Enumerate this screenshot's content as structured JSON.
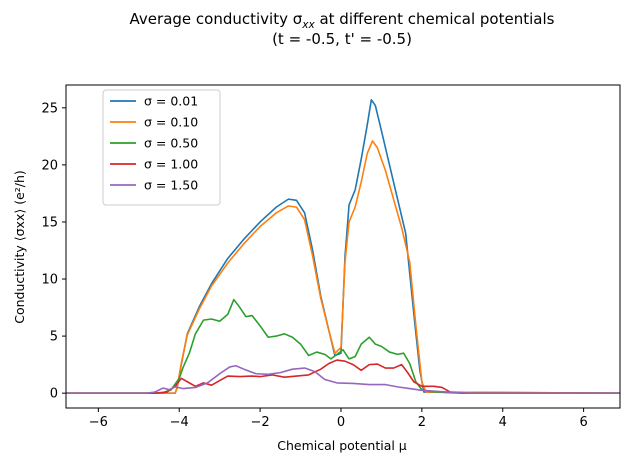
{
  "chart_data": {
    "type": "line",
    "title_line1": "Average conductivity σ",
    "title_sub": "xx",
    "title_line1_tail": " at different chemical potentials",
    "title_line2": "(t = -0.5, t' = -0.5)",
    "xlabel": "Chemical potential μ",
    "ylabel": "Conductivity ⟨σxx⟩ (e²/h)",
    "xlim": [
      -6.8,
      6.9
    ],
    "ylim": [
      -1.3,
      27
    ],
    "xticks": [
      -6,
      -4,
      -2,
      0,
      2,
      4,
      6
    ],
    "xtick_labels": [
      "−6",
      "−4",
      "−2",
      "0",
      "2",
      "4",
      "6"
    ],
    "yticks": [
      0,
      5,
      10,
      15,
      20,
      25
    ],
    "ytick_labels": [
      "0",
      "5",
      "10",
      "15",
      "20",
      "25"
    ],
    "grid": false,
    "legend_position": "upper-left",
    "series": [
      {
        "name": "σ = 0.01",
        "color": "#1f77b4",
        "points": [
          [
            -6.8,
            0
          ],
          [
            -4.1,
            0
          ],
          [
            -4.05,
            0.5
          ],
          [
            -3.95,
            2.5
          ],
          [
            -3.8,
            5.2
          ],
          [
            -3.5,
            7.6
          ],
          [
            -3.2,
            9.6
          ],
          [
            -2.8,
            11.8
          ],
          [
            -2.4,
            13.5
          ],
          [
            -2.0,
            15.0
          ],
          [
            -1.6,
            16.3
          ],
          [
            -1.3,
            17.0
          ],
          [
            -1.1,
            16.9
          ],
          [
            -0.9,
            15.8
          ],
          [
            -0.7,
            12.5
          ],
          [
            -0.5,
            8.5
          ],
          [
            -0.3,
            5.5
          ],
          [
            -0.15,
            3.3
          ],
          [
            0.0,
            3.5
          ],
          [
            0.1,
            12.0
          ],
          [
            0.2,
            16.5
          ],
          [
            0.35,
            17.8
          ],
          [
            0.5,
            20.5
          ],
          [
            0.65,
            23.5
          ],
          [
            0.75,
            25.7
          ],
          [
            0.85,
            25.2
          ],
          [
            1.0,
            23.0
          ],
          [
            1.2,
            20.0
          ],
          [
            1.4,
            17.0
          ],
          [
            1.6,
            14.0
          ],
          [
            1.8,
            7.0
          ],
          [
            1.95,
            2.0
          ],
          [
            2.05,
            0.1
          ],
          [
            6.9,
            0
          ]
        ]
      },
      {
        "name": "σ = 0.10",
        "color": "#ff7f0e",
        "points": [
          [
            -6.8,
            0
          ],
          [
            -4.1,
            0
          ],
          [
            -4.05,
            0.5
          ],
          [
            -3.95,
            2.6
          ],
          [
            -3.8,
            5.1
          ],
          [
            -3.5,
            7.4
          ],
          [
            -3.2,
            9.4
          ],
          [
            -2.8,
            11.4
          ],
          [
            -2.4,
            13.1
          ],
          [
            -2.0,
            14.6
          ],
          [
            -1.6,
            15.8
          ],
          [
            -1.3,
            16.4
          ],
          [
            -1.1,
            16.3
          ],
          [
            -0.9,
            15.2
          ],
          [
            -0.7,
            12.0
          ],
          [
            -0.5,
            8.3
          ],
          [
            -0.3,
            5.5
          ],
          [
            -0.15,
            3.5
          ],
          [
            0.0,
            4.0
          ],
          [
            0.1,
            11.5
          ],
          [
            0.2,
            15.0
          ],
          [
            0.35,
            16.3
          ],
          [
            0.5,
            18.5
          ],
          [
            0.65,
            21.0
          ],
          [
            0.78,
            22.1
          ],
          [
            0.9,
            21.5
          ],
          [
            1.1,
            19.5
          ],
          [
            1.3,
            17.0
          ],
          [
            1.5,
            14.5
          ],
          [
            1.7,
            11.5
          ],
          [
            1.85,
            6.0
          ],
          [
            2.0,
            1.0
          ],
          [
            2.1,
            0.1
          ],
          [
            6.9,
            0
          ]
        ]
      },
      {
        "name": "σ = 0.50",
        "color": "#2ca02c",
        "points": [
          [
            -6.8,
            0
          ],
          [
            -4.6,
            0
          ],
          [
            -4.4,
            0.05
          ],
          [
            -4.2,
            0.3
          ],
          [
            -4.0,
            1.3
          ],
          [
            -3.9,
            2.3
          ],
          [
            -3.75,
            3.5
          ],
          [
            -3.6,
            5.2
          ],
          [
            -3.4,
            6.4
          ],
          [
            -3.2,
            6.5
          ],
          [
            -3.0,
            6.3
          ],
          [
            -2.8,
            6.9
          ],
          [
            -2.65,
            8.2
          ],
          [
            -2.5,
            7.5
          ],
          [
            -2.35,
            6.7
          ],
          [
            -2.2,
            6.8
          ],
          [
            -2.0,
            5.9
          ],
          [
            -1.8,
            4.9
          ],
          [
            -1.6,
            5.0
          ],
          [
            -1.4,
            5.2
          ],
          [
            -1.2,
            4.9
          ],
          [
            -1.0,
            4.3
          ],
          [
            -0.8,
            3.3
          ],
          [
            -0.6,
            3.6
          ],
          [
            -0.4,
            3.4
          ],
          [
            -0.25,
            3.0
          ],
          [
            -0.1,
            3.4
          ],
          [
            0.05,
            3.8
          ],
          [
            0.2,
            3.0
          ],
          [
            0.35,
            3.2
          ],
          [
            0.5,
            4.3
          ],
          [
            0.7,
            4.9
          ],
          [
            0.85,
            4.3
          ],
          [
            1.0,
            4.1
          ],
          [
            1.2,
            3.6
          ],
          [
            1.4,
            3.4
          ],
          [
            1.55,
            3.5
          ],
          [
            1.7,
            2.6
          ],
          [
            1.85,
            1.0
          ],
          [
            2.0,
            0.3
          ],
          [
            2.2,
            0.15
          ],
          [
            2.6,
            0.05
          ],
          [
            3.0,
            0
          ],
          [
            6.9,
            0
          ]
        ]
      },
      {
        "name": "σ = 1.00",
        "color": "#d62728",
        "points": [
          [
            -6.8,
            0
          ],
          [
            -4.6,
            0
          ],
          [
            -4.3,
            0.1
          ],
          [
            -4.1,
            0.6
          ],
          [
            -3.95,
            1.3
          ],
          [
            -3.8,
            1.0
          ],
          [
            -3.6,
            0.6
          ],
          [
            -3.4,
            0.9
          ],
          [
            -3.2,
            0.7
          ],
          [
            -3.0,
            1.1
          ],
          [
            -2.8,
            1.5
          ],
          [
            -2.5,
            1.45
          ],
          [
            -2.2,
            1.5
          ],
          [
            -2.0,
            1.45
          ],
          [
            -1.7,
            1.6
          ],
          [
            -1.4,
            1.4
          ],
          [
            -1.1,
            1.5
          ],
          [
            -0.8,
            1.6
          ],
          [
            -0.5,
            2.1
          ],
          [
            -0.3,
            2.6
          ],
          [
            -0.1,
            2.9
          ],
          [
            0.1,
            2.8
          ],
          [
            0.3,
            2.5
          ],
          [
            0.5,
            2.0
          ],
          [
            0.7,
            2.5
          ],
          [
            0.9,
            2.55
          ],
          [
            1.1,
            2.2
          ],
          [
            1.3,
            2.2
          ],
          [
            1.5,
            2.5
          ],
          [
            1.65,
            1.8
          ],
          [
            1.8,
            1.0
          ],
          [
            2.0,
            0.6
          ],
          [
            2.3,
            0.6
          ],
          [
            2.5,
            0.5
          ],
          [
            2.7,
            0.1
          ],
          [
            3.0,
            0
          ],
          [
            6.9,
            0
          ]
        ]
      },
      {
        "name": "σ = 1.50",
        "color": "#9467bd",
        "points": [
          [
            -6.8,
            0
          ],
          [
            -4.8,
            0
          ],
          [
            -4.6,
            0.1
          ],
          [
            -4.4,
            0.45
          ],
          [
            -4.25,
            0.3
          ],
          [
            -4.1,
            0.55
          ],
          [
            -3.9,
            0.4
          ],
          [
            -3.6,
            0.5
          ],
          [
            -3.3,
            0.9
          ],
          [
            -3.0,
            1.7
          ],
          [
            -2.75,
            2.3
          ],
          [
            -2.6,
            2.4
          ],
          [
            -2.4,
            2.1
          ],
          [
            -2.1,
            1.7
          ],
          [
            -1.8,
            1.65
          ],
          [
            -1.5,
            1.8
          ],
          [
            -1.2,
            2.1
          ],
          [
            -0.9,
            2.2
          ],
          [
            -0.65,
            1.9
          ],
          [
            -0.4,
            1.2
          ],
          [
            -0.1,
            0.9
          ],
          [
            0.3,
            0.85
          ],
          [
            0.7,
            0.75
          ],
          [
            1.1,
            0.75
          ],
          [
            1.4,
            0.55
          ],
          [
            1.7,
            0.4
          ],
          [
            2.0,
            0.25
          ],
          [
            2.4,
            0.15
          ],
          [
            2.8,
            0.05
          ],
          [
            3.2,
            0
          ],
          [
            6.9,
            0
          ]
        ]
      }
    ]
  }
}
